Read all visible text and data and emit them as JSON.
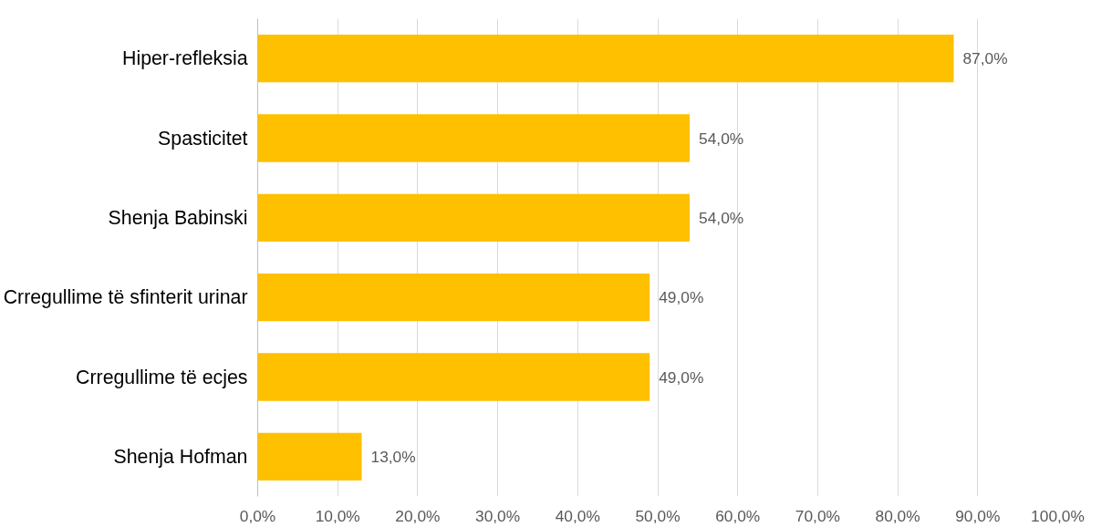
{
  "chart_data": {
    "type": "bar",
    "orientation": "horizontal",
    "categories": [
      "Hiper-refleksia",
      "Spasticitet",
      "Shenja Babinski",
      "Crregullime të sfinterit urinar",
      "Crregullime të ecjes",
      "Shenja Hofman"
    ],
    "values": [
      87,
      54,
      54,
      49,
      49,
      13
    ],
    "value_labels": [
      "87,0%",
      "54,0%",
      "54,0%",
      "49,0%",
      "49,0%",
      "13,0%"
    ],
    "color": "#ffc000",
    "xlim": [
      0,
      100
    ],
    "xticks": [
      {
        "value": 0,
        "label": "0,0%"
      },
      {
        "value": 10,
        "label": "10,0%"
      },
      {
        "value": 20,
        "label": "20,0%"
      },
      {
        "value": 30,
        "label": "30,0%"
      },
      {
        "value": 40,
        "label": "40,0%"
      },
      {
        "value": 50,
        "label": "50,0%"
      },
      {
        "value": 60,
        "label": "60,0%"
      },
      {
        "value": 70,
        "label": "70,0%"
      },
      {
        "value": 80,
        "label": "80,0%"
      },
      {
        "value": 90,
        "label": "90,0%"
      },
      {
        "value": 100,
        "label": "100,0%"
      }
    ],
    "grid": "x"
  }
}
